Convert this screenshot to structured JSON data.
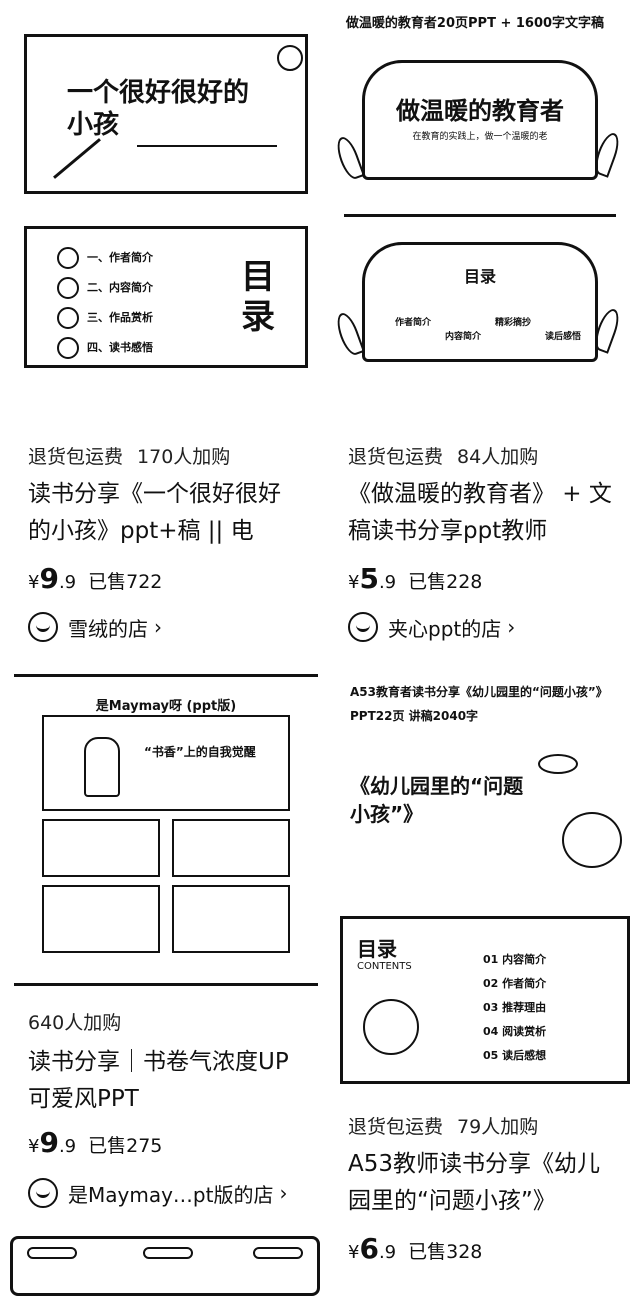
{
  "products": [
    {
      "thumb_caption": "",
      "slide_title": "一个很好很好的小孩",
      "toc_title": "目录",
      "toc_items": [
        "一、作者简介",
        "二、内容简介",
        "三、作品赏析",
        "四、读书感悟"
      ],
      "tags": "退货包运费",
      "buyers": "170人加购",
      "title": "读书分享《一个很好很好的小孩》ppt+稿 || 电",
      "price_symbol": "¥",
      "price_int": "9",
      "price_dec": ".9",
      "sold": "已售722",
      "shop": "雪绒的店",
      "chevron": "›"
    },
    {
      "thumb_caption": "做温暖的教育者20页PPT + 1600字文字稿",
      "slide_title": "做温暖的教育者",
      "slide_sub": "在教育的实践上，做一个温暖的老",
      "toc_title": "目录",
      "toc_items": [
        "作者简介",
        "内容简介",
        "精彩摘抄",
        "读后感悟"
      ],
      "tags": "退货包运费",
      "buyers": "84人加购",
      "title": "《做温暖的教育者》 + 文稿读书分享ppt教师",
      "price_symbol": "¥",
      "price_int": "5",
      "price_dec": ".9",
      "sold": "已售228",
      "shop": "夹心ppt的店",
      "chevron": "›"
    },
    {
      "thumb_caption": "是Maymay呀 (ppt版)",
      "slide_title": "“书香”上的自我觉醒",
      "tags": "",
      "buyers": "640人加购",
      "title": "读书分享｜书卷气浓度UP可爱风PPT",
      "price_symbol": "¥",
      "price_int": "9",
      "price_dec": ".9",
      "sold": "已售275",
      "shop": "是Maymay…pt版的店",
      "chevron": "›"
    },
    {
      "thumb_caption": "A53教育者读书分享《幼儿园里的“问题小孩”》PPT22页 讲稿2040字",
      "slide_title": "《幼儿园里的“问题小孩”》",
      "toc_title": "目录",
      "toc_sub": "CONTENTS",
      "toc_items": [
        "01 内容简介",
        "02 作者简介",
        "03 推荐理由",
        "04 阅读赏析",
        "05 读后感想"
      ],
      "tags": "退货包运费",
      "buyers": "79人加购",
      "title": "A53教师读书分享《幼儿园里的“问题小孩”》",
      "price_symbol": "¥",
      "price_int": "6",
      "price_dec": ".9",
      "sold": "已售328"
    }
  ]
}
